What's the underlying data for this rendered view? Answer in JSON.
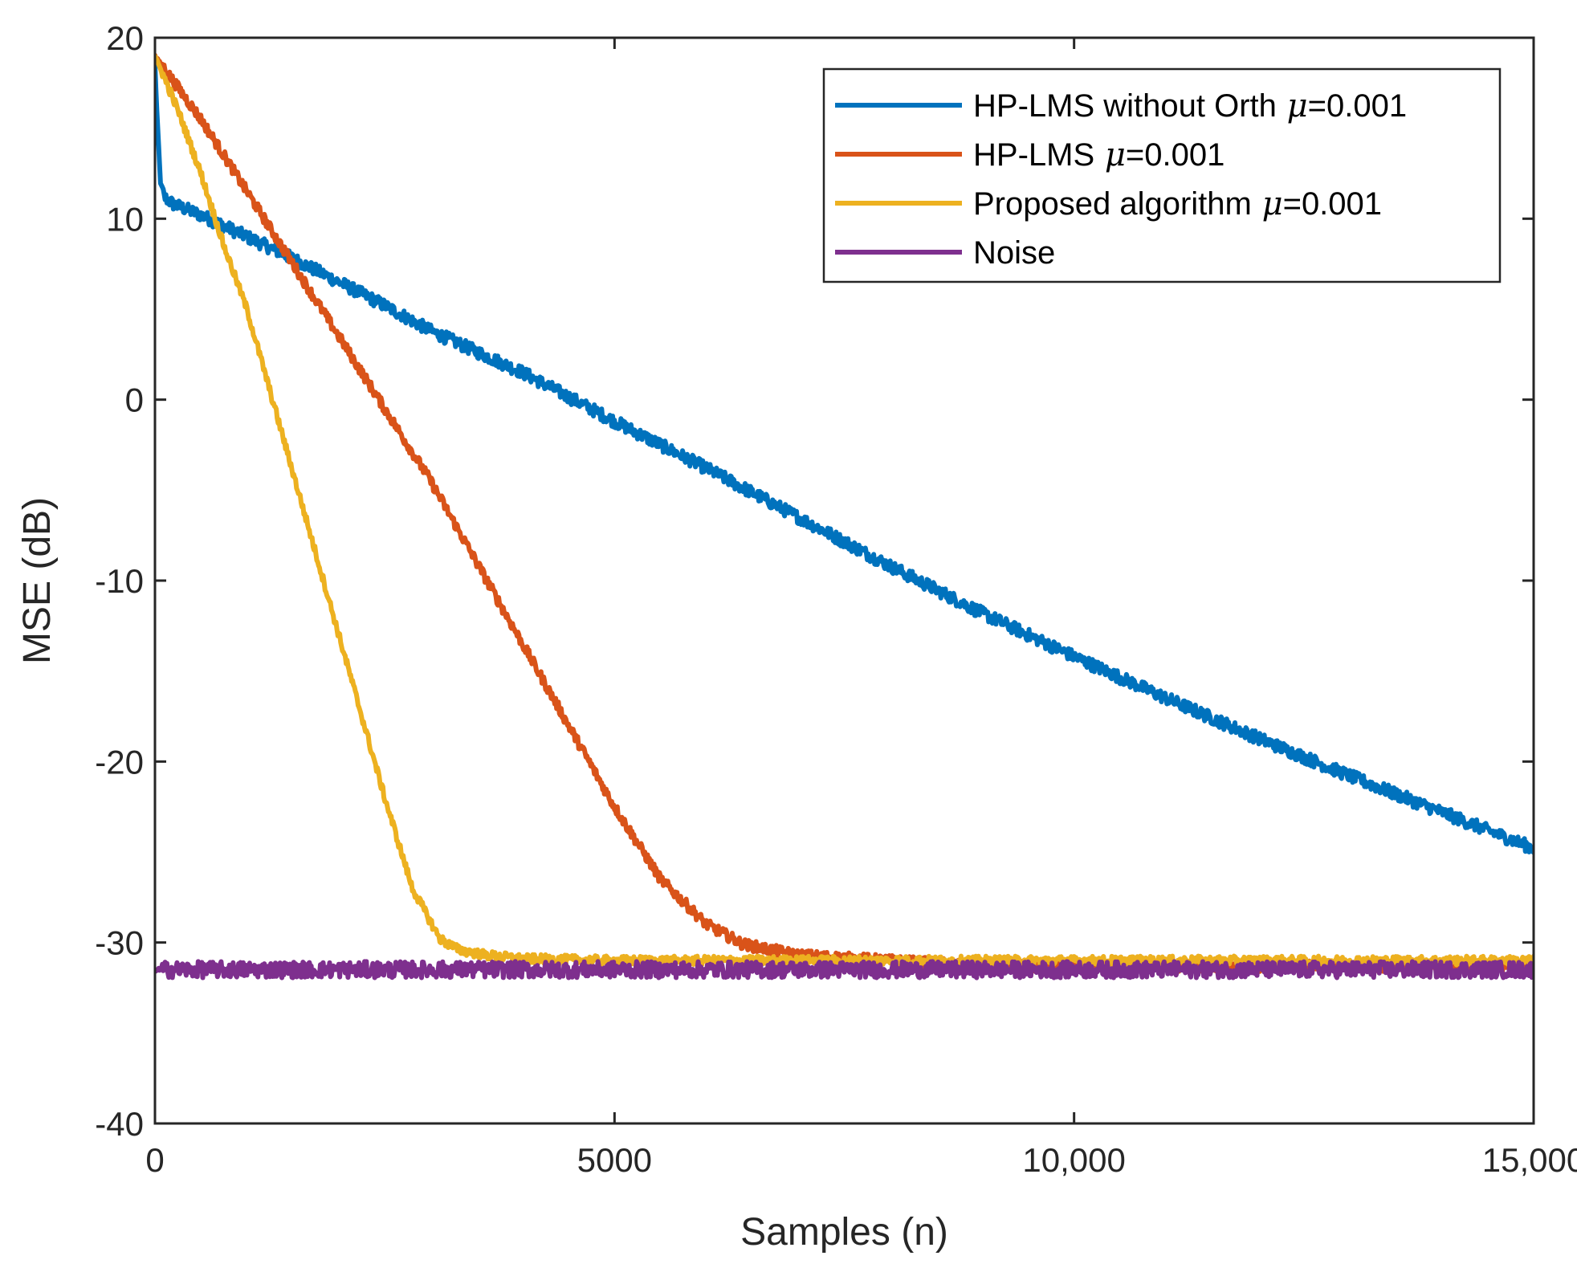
{
  "chart_data": {
    "type": "line",
    "title": "",
    "xlabel": "Samples (n)",
    "ylabel": "MSE (dB)",
    "xlim": [
      0,
      15000
    ],
    "ylim": [
      -40,
      20
    ],
    "grid": false,
    "legend_position": "top-right",
    "x_ticks": [
      {
        "value": 0,
        "label": "0"
      },
      {
        "value": 5000,
        "label": "5000"
      },
      {
        "value": 10000,
        "label": "10,000"
      },
      {
        "value": 15000,
        "label": "15,000"
      }
    ],
    "y_ticks": [
      {
        "value": 20,
        "label": "20"
      },
      {
        "value": 10,
        "label": "10"
      },
      {
        "value": 0,
        "label": "0"
      },
      {
        "value": -10,
        "label": "-10"
      },
      {
        "value": -20,
        "label": "-20"
      },
      {
        "value": -30,
        "label": "-30"
      },
      {
        "value": -40,
        "label": "-40"
      }
    ],
    "series": [
      {
        "name": "HP-LMS without Orth",
        "legend_suffix": "=0.001",
        "color": "#0072BD",
        "noise_amplitude": 0.35,
        "x": [
          0,
          20,
          60,
          100,
          200,
          500,
          1000,
          1500,
          2000,
          2500,
          3000,
          4000,
          5000,
          6000,
          7000,
          8000,
          9000,
          10000,
          11000,
          12000,
          13000,
          14000,
          15000
        ],
        "y": [
          18.5,
          16,
          12,
          11.2,
          10.8,
          10.2,
          9,
          7.8,
          6.5,
          5.2,
          3.8,
          1.5,
          -1.2,
          -3.8,
          -6.5,
          -9.2,
          -11.8,
          -14.2,
          -16.5,
          -18.7,
          -20.8,
          -22.8,
          -24.8
        ]
      },
      {
        "name": "HP-LMS",
        "legend_suffix": "=0.001",
        "color": "#D95319",
        "noise_amplitude": 0.3,
        "x": [
          0,
          500,
          1000,
          1500,
          2000,
          2500,
          3000,
          3500,
          4000,
          4500,
          5000,
          5500,
          6000,
          6400,
          6800,
          7000,
          8000,
          9000,
          10000,
          11000,
          12000,
          13000,
          14000,
          15000
        ],
        "y": [
          19,
          15.5,
          11.5,
          7.5,
          3.5,
          -0.5,
          -4.5,
          -9,
          -13.5,
          -18,
          -22.5,
          -26.5,
          -29,
          -30.1,
          -30.5,
          -30.7,
          -31,
          -31.3,
          -31.3,
          -31.3,
          -31.3,
          -31.3,
          -31.3,
          -31.3
        ]
      },
      {
        "name": "Proposed algorithm",
        "legend_suffix": "=0.001",
        "color": "#EDB120",
        "noise_amplitude": 0.25,
        "x": [
          0,
          250,
          500,
          750,
          1000,
          1500,
          2000,
          2500,
          2800,
          3100,
          3300,
          3600,
          4000,
          5000,
          6000,
          7000,
          8000,
          9000,
          10000,
          11000,
          12000,
          13000,
          14000,
          15000
        ],
        "y": [
          19,
          16,
          12.5,
          8.5,
          5,
          -4,
          -13,
          -22,
          -27,
          -29.8,
          -30.4,
          -30.7,
          -30.9,
          -31,
          -31,
          -31,
          -31,
          -31,
          -31,
          -31,
          -31,
          -31,
          -31,
          -31
        ]
      },
      {
        "name": "Noise",
        "legend_suffix": "",
        "color": "#7E2F8E",
        "noise_amplitude": 0.45,
        "x": [
          0,
          15000
        ],
        "y": [
          -31.5,
          -31.5
        ]
      }
    ]
  }
}
